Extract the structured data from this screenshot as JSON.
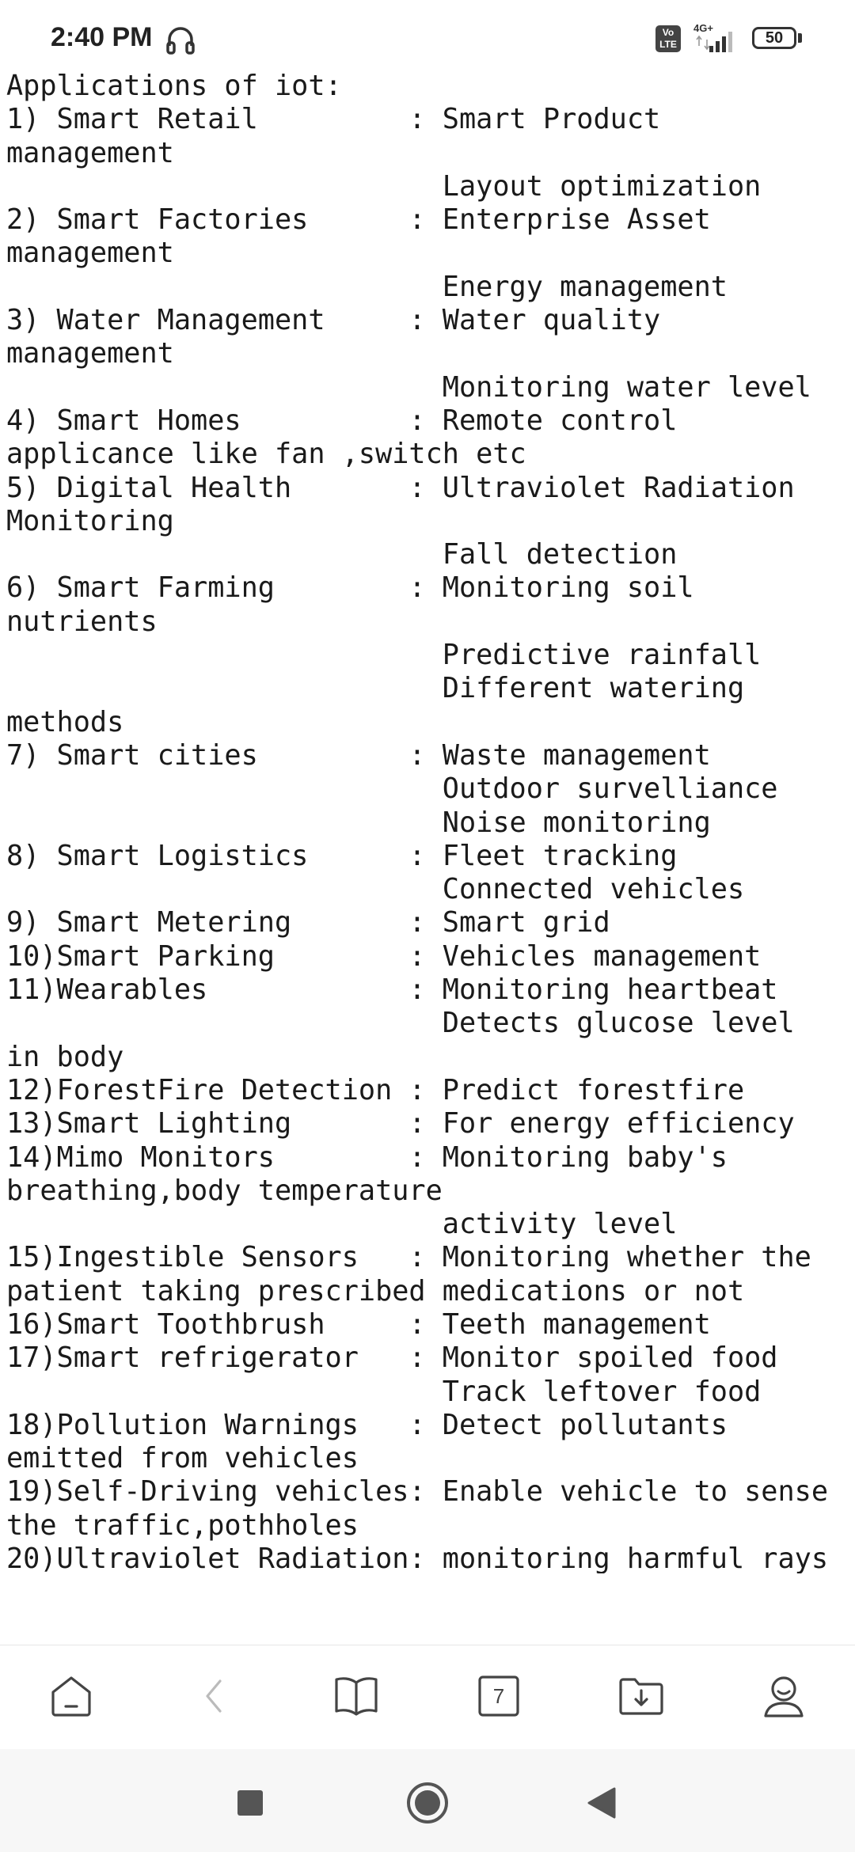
{
  "status_bar": {
    "time": "2:40 PM",
    "headphone_icon": "headphone-icon",
    "volte": "Vo LTE",
    "network": "4G+",
    "battery": "50"
  },
  "document": {
    "lines": [
      "Applications of iot:",
      "1) Smart Retail         : Smart Product",
      "management",
      "                          Layout optimization",
      "2) Smart Factories      : Enterprise Asset",
      "management",
      "                          Energy management",
      "3) Water Management     : Water quality",
      "management",
      "                          Monitoring water level",
      "4) Smart Homes          : Remote control",
      "applicance like fan ,switch etc",
      "5) Digital Health       : Ultraviolet Radiation",
      "Monitoring",
      "                          Fall detection",
      "6) Smart Farming        : Monitoring soil",
      "nutrients",
      "                          Predictive rainfall",
      "                          Different watering",
      "methods",
      "7) Smart cities         : Waste management",
      "                          Outdoor survelliance",
      "                          Noise monitoring",
      "8) Smart Logistics      : Fleet tracking",
      "                          Connected vehicles",
      "9) Smart Metering       : Smart grid",
      "10)Smart Parking        : Vehicles management",
      "11)Wearables            : Monitoring heartbeat",
      "                          Detects glucose level",
      "in body",
      "12)ForestFire Detection : Predict forestfire",
      "13)Smart Lighting       : For energy efficiency",
      "14)Mimo Monitors        : Monitoring baby's",
      "breathing,body temperature",
      "                          activity level",
      "15)Ingestible Sensors   : Monitoring whether the",
      "patient taking prescribed medications or not",
      "16)Smart Toothbrush     : Teeth management",
      "17)Smart refrigerator   : Monitor spoiled food",
      "                          Track leftover food",
      "18)Pollution Warnings   : Detect pollutants",
      "emitted from vehicles",
      "19)Self-Driving vehicles: Enable vehicle to sense",
      "the traffic,pothholes",
      "20)Ultraviolet Radiation: monitoring harmful rays"
    ]
  },
  "toolbar": {
    "tab_count": "7",
    "icons": [
      "home-icon",
      "back-icon",
      "bookmarks-icon",
      "tabs-icon",
      "downloads-icon",
      "profile-icon"
    ]
  },
  "navbar": {
    "icons": [
      "recents-icon",
      "home-nav-icon",
      "back-nav-icon"
    ]
  }
}
